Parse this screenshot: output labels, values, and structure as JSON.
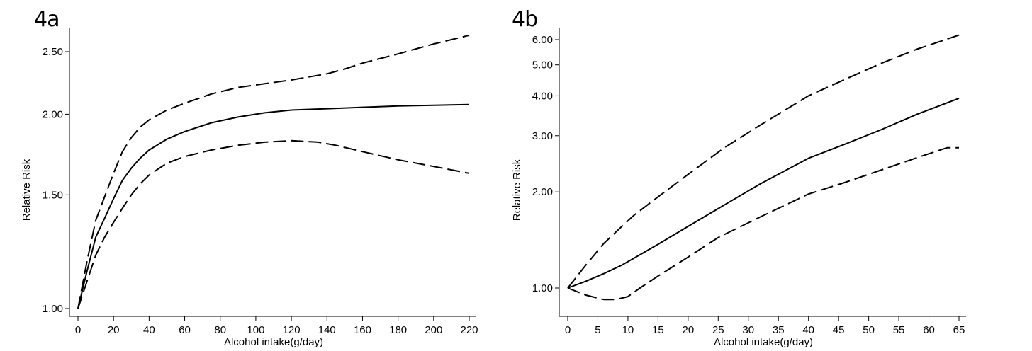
{
  "panels": {
    "a": {
      "label": "4a"
    },
    "b": {
      "label": "4b"
    }
  },
  "chart_data": [
    {
      "type": "line",
      "panel": "4a",
      "xlabel": "Alcohol intake(g/day)",
      "ylabel": "Relative Risk",
      "x_scale": "linear",
      "y_scale": "log",
      "xlim": [
        0,
        220
      ],
      "ylim": [
        1.0,
        2.7
      ],
      "x_ticks": [
        0,
        20,
        40,
        60,
        80,
        100,
        120,
        140,
        160,
        180,
        200,
        220
      ],
      "y_ticks": [
        1.0,
        1.5,
        2.0,
        2.5
      ],
      "x_tick_labels": [
        "0",
        "20",
        "40",
        "60",
        "80",
        "100",
        "120",
        "140",
        "160",
        "180",
        "200",
        "220"
      ],
      "y_tick_labels": [
        "1.00",
        "1.50",
        "2.00",
        "2.50"
      ],
      "grid": false,
      "series": [
        {
          "style": "solid",
          "points": [
            [
              0,
              1.0
            ],
            [
              5,
              1.14
            ],
            [
              10,
              1.29
            ],
            [
              15,
              1.38
            ],
            [
              20,
              1.48
            ],
            [
              25,
              1.58
            ],
            [
              30,
              1.65
            ],
            [
              35,
              1.71
            ],
            [
              40,
              1.76
            ],
            [
              50,
              1.83
            ],
            [
              60,
              1.88
            ],
            [
              75,
              1.94
            ],
            [
              90,
              1.98
            ],
            [
              105,
              2.01
            ],
            [
              120,
              2.03
            ],
            [
              140,
              2.04
            ],
            [
              160,
              2.05
            ],
            [
              180,
              2.06
            ],
            [
              200,
              2.065
            ],
            [
              220,
              2.07
            ]
          ]
        },
        {
          "style": "dashed",
          "points": [
            [
              0,
              1.0
            ],
            [
              5,
              1.18
            ],
            [
              10,
              1.37
            ],
            [
              15,
              1.49
            ],
            [
              20,
              1.62
            ],
            [
              25,
              1.75
            ],
            [
              30,
              1.84
            ],
            [
              35,
              1.91
            ],
            [
              40,
              1.96
            ],
            [
              50,
              2.03
            ],
            [
              60,
              2.08
            ],
            [
              75,
              2.15
            ],
            [
              90,
              2.2
            ],
            [
              105,
              2.23
            ],
            [
              120,
              2.26
            ],
            [
              140,
              2.31
            ],
            [
              150,
              2.35
            ],
            [
              160,
              2.4
            ],
            [
              180,
              2.48
            ],
            [
              200,
              2.57
            ],
            [
              220,
              2.65
            ]
          ]
        },
        {
          "style": "dashed",
          "points": [
            [
              0,
              1.0
            ],
            [
              5,
              1.1
            ],
            [
              10,
              1.21
            ],
            [
              15,
              1.29
            ],
            [
              20,
              1.36
            ],
            [
              25,
              1.43
            ],
            [
              30,
              1.5
            ],
            [
              35,
              1.56
            ],
            [
              40,
              1.61
            ],
            [
              50,
              1.68
            ],
            [
              60,
              1.72
            ],
            [
              75,
              1.76
            ],
            [
              90,
              1.79
            ],
            [
              105,
              1.81
            ],
            [
              120,
              1.82
            ],
            [
              135,
              1.81
            ],
            [
              145,
              1.79
            ],
            [
              160,
              1.75
            ],
            [
              180,
              1.7
            ],
            [
              200,
              1.66
            ],
            [
              220,
              1.62
            ]
          ]
        }
      ]
    },
    {
      "type": "line",
      "panel": "4b",
      "xlabel": "Alcohol intake(g/day)",
      "ylabel": "Relative Risk",
      "x_scale": "linear",
      "y_scale": "log",
      "xlim": [
        0,
        65
      ],
      "ylim": [
        0.9,
        6.5
      ],
      "x_ticks": [
        0,
        5,
        10,
        15,
        20,
        25,
        30,
        35,
        40,
        45,
        50,
        55,
        60,
        65
      ],
      "y_ticks": [
        1.0,
        2.0,
        3.0,
        4.0,
        5.0,
        6.0
      ],
      "x_tick_labels": [
        "0",
        "5",
        "10",
        "15",
        "20",
        "25",
        "30",
        "35",
        "40",
        "45",
        "50",
        "55",
        "60",
        "65"
      ],
      "y_tick_labels": [
        "1.00",
        "2.00",
        "3.00",
        "4.00",
        "5.00",
        "6.00"
      ],
      "grid": false,
      "series": [
        {
          "style": "solid",
          "points": [
            [
              0,
              1.0
            ],
            [
              3,
              1.05
            ],
            [
              6,
              1.11
            ],
            [
              9,
              1.18
            ],
            [
              11,
              1.24
            ],
            [
              15,
              1.37
            ],
            [
              20,
              1.56
            ],
            [
              26,
              1.82
            ],
            [
              32,
              2.12
            ],
            [
              40,
              2.55
            ],
            [
              46,
              2.82
            ],
            [
              52,
              3.13
            ],
            [
              58,
              3.5
            ],
            [
              65,
              3.93
            ]
          ]
        },
        {
          "style": "dashed",
          "points": [
            [
              0,
              1.0
            ],
            [
              3,
              1.18
            ],
            [
              6,
              1.38
            ],
            [
              9,
              1.56
            ],
            [
              11,
              1.69
            ],
            [
              15,
              1.93
            ],
            [
              20,
              2.27
            ],
            [
              26,
              2.75
            ],
            [
              32,
              3.24
            ],
            [
              40,
              4.0
            ],
            [
              46,
              4.5
            ],
            [
              52,
              5.05
            ],
            [
              58,
              5.6
            ],
            [
              65,
              6.2
            ]
          ]
        },
        {
          "style": "dashed",
          "points": [
            [
              0,
              1.0
            ],
            [
              3,
              0.95
            ],
            [
              6,
              0.92
            ],
            [
              8,
              0.92
            ],
            [
              10,
              0.94
            ],
            [
              12,
              1.0
            ],
            [
              15,
              1.09
            ],
            [
              20,
              1.25
            ],
            [
              25,
              1.44
            ],
            [
              32,
              1.67
            ],
            [
              40,
              1.97
            ],
            [
              46,
              2.14
            ],
            [
              52,
              2.34
            ],
            [
              58,
              2.56
            ],
            [
              63,
              2.75
            ],
            [
              65,
              2.75
            ]
          ]
        }
      ]
    }
  ]
}
